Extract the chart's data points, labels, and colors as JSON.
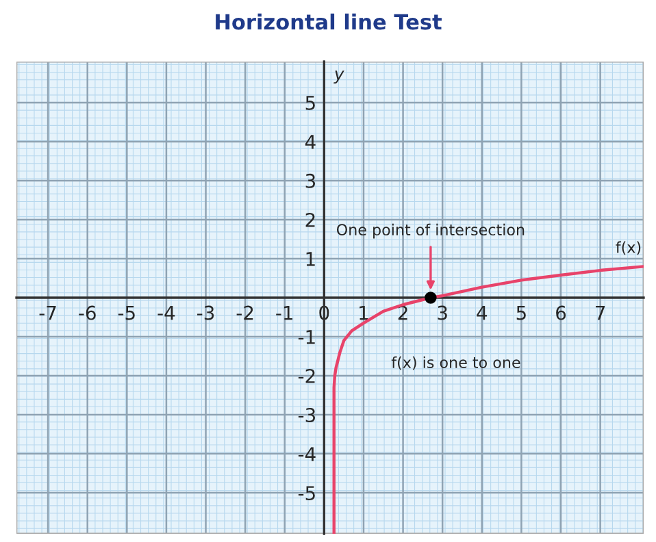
{
  "chart_data": {
    "type": "line",
    "title": "Horizontal line Test",
    "ylabel": "y",
    "xlim": [
      -7.8,
      8.1
    ],
    "ylim": [
      -6.05,
      6.05
    ],
    "xticks": [
      -7,
      -6,
      -5,
      -4,
      -3,
      -2,
      -1,
      0,
      1,
      2,
      3,
      4,
      5,
      6,
      7
    ],
    "yticks": [
      -5,
      -4,
      -3,
      -2,
      -1,
      1,
      2,
      3,
      4,
      5
    ],
    "grid": true,
    "legend": false,
    "series": [
      {
        "name": "f(x)",
        "color": "#e8436a",
        "x": [
          0.25,
          0.25,
          0.27,
          0.3,
          0.4,
          0.5,
          0.7,
          1,
          1.5,
          2,
          2.7,
          3,
          4,
          5,
          6,
          7,
          8.1
        ],
        "values": [
          -6.05,
          -2.3,
          -2.0,
          -1.8,
          -1.4,
          -1.1,
          -0.85,
          -0.65,
          -0.35,
          -0.18,
          0,
          0.05,
          0.27,
          0.45,
          0.58,
          0.7,
          0.8
        ]
      },
      {
        "type": "scatter",
        "color": "#000000",
        "x": [
          2.7
        ],
        "values": [
          0
        ],
        "marker": "circle"
      }
    ],
    "annotations": [
      {
        "text": "One point of intersection",
        "x": 2.7,
        "y": 0
      },
      "f(x) is one to one"
    ]
  }
}
